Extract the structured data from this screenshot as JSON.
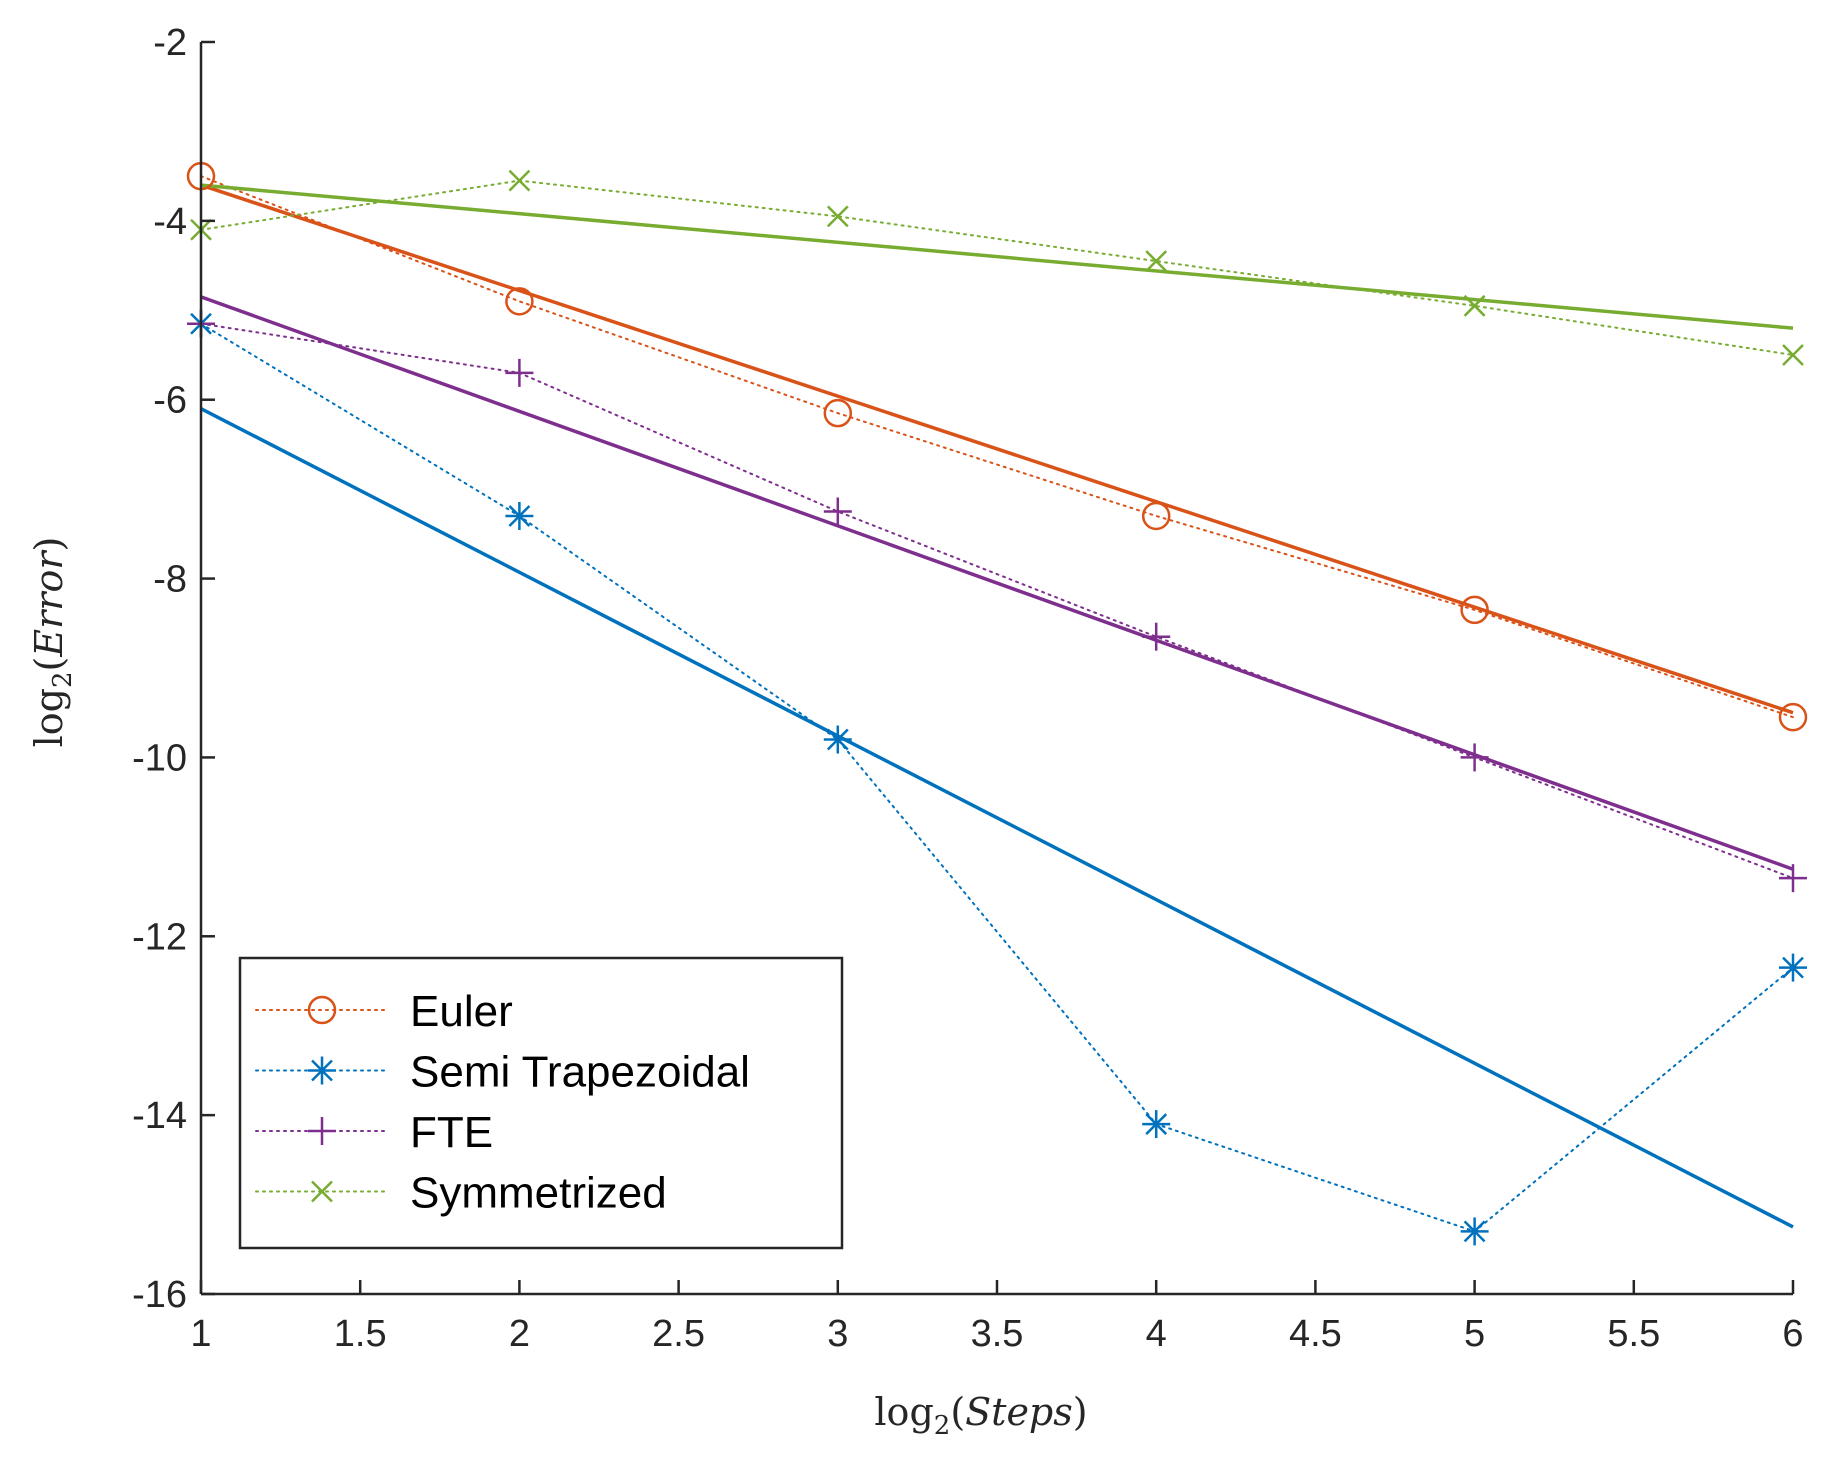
{
  "chart_data": {
    "type": "line",
    "title": "",
    "xlabel": "log2(Steps)",
    "ylabel": "log2(Error)",
    "xlim": [
      1,
      6
    ],
    "ylim": [
      -16,
      -2
    ],
    "xticks": [
      1,
      1.5,
      2,
      2.5,
      3,
      3.5,
      4,
      4.5,
      5,
      5.5,
      6
    ],
    "xtick_labels": [
      "1",
      "1.5",
      "2",
      "2.5",
      "3",
      "3.5",
      "4",
      "4.5",
      "5",
      "5.5",
      "6"
    ],
    "yticks": [
      -2,
      -4,
      -6,
      -8,
      -10,
      -12,
      -14,
      -16
    ],
    "ytick_labels": [
      "-2",
      "-4",
      "-6",
      "-8",
      "-10",
      "-12",
      "-14",
      "-16"
    ],
    "grid": false,
    "legend_position": "bottom-left",
    "x": [
      1,
      2,
      3,
      4,
      5,
      6
    ],
    "series": [
      {
        "name": "Euler",
        "color": "#d95319",
        "marker": "circle",
        "values": [
          -3.5,
          -4.9,
          -6.15,
          -7.3,
          -8.35,
          -9.55
        ],
        "fit": [
          -3.6,
          -9.5
        ]
      },
      {
        "name": "Semi Trapezoidal",
        "color": "#0072bd",
        "marker": "asterisk",
        "values": [
          -5.15,
          -7.3,
          -9.8,
          -14.1,
          -15.3,
          -12.35
        ],
        "fit": [
          -6.1,
          -15.25
        ]
      },
      {
        "name": "FTE",
        "color": "#7e2f8e",
        "marker": "plus",
        "values": [
          -5.15,
          -5.7,
          -7.25,
          -8.65,
          -10.0,
          -11.35
        ],
        "fit": [
          -4.85,
          -11.25
        ]
      },
      {
        "name": "Symmetrized",
        "color": "#77ac30",
        "marker": "x",
        "values": [
          -4.1,
          -3.55,
          -3.95,
          -4.45,
          -4.95,
          -5.5
        ],
        "fit": [
          -3.6,
          -5.2
        ]
      }
    ]
  }
}
